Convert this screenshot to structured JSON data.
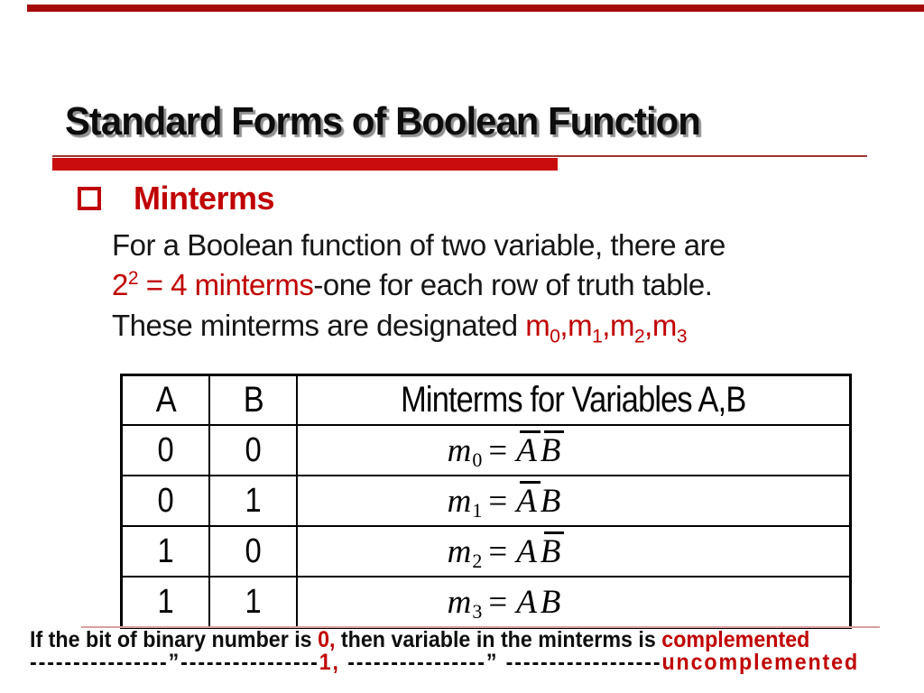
{
  "colors": {
    "accent_red": "#c00000",
    "thick_bar_red": "#c90d0d",
    "thin_line_red": "#9e3434",
    "top_bar_red": "#a50a0a",
    "pink_rule": "#dba0a0",
    "text_black": "#111111"
  },
  "title": {
    "text": "Standard Forms of Boolean Function"
  },
  "heading": {
    "text": "Minterms"
  },
  "paragraph": {
    "line1": "For a Boolean function of two variable, there are",
    "line2_red": {
      "base": "2",
      "sup": "2",
      "rest": " = 4 minterms"
    },
    "line2_black": "-one for each row of truth table.",
    "line3_black": "These minterms are designated ",
    "line3_red": {
      "separator": ",",
      "items": [
        {
          "base": "m",
          "sub": "0"
        },
        {
          "base": "m",
          "sub": "1"
        },
        {
          "base": "m",
          "sub": "2"
        },
        {
          "base": "m",
          "sub": "3"
        }
      ]
    }
  },
  "table": {
    "headers": [
      "A",
      "B",
      "Minterms for Variables A,B"
    ],
    "rows": [
      {
        "a": "0",
        "b": "0",
        "m": "m",
        "sub": "0",
        "eq": "=",
        "varA": "A",
        "varB": "B",
        "a_complemented": true,
        "b_complemented": true,
        "formula_text": "m0 = ĀB̄"
      },
      {
        "a": "0",
        "b": "1",
        "m": "m",
        "sub": "1",
        "eq": "=",
        "varA": "A",
        "varB": "B",
        "a_complemented": true,
        "b_complemented": false,
        "formula_text": "m1 = ĀB"
      },
      {
        "a": "1",
        "b": "0",
        "m": "m",
        "sub": "2",
        "eq": "=",
        "varA": "A",
        "varB": "B",
        "a_complemented": false,
        "b_complemented": true,
        "formula_text": "m2 = AB̄"
      },
      {
        "a": "1",
        "b": "1",
        "m": "m",
        "sub": "3",
        "eq": "=",
        "varA": "A",
        "varB": "B",
        "a_complemented": false,
        "b_complemented": false,
        "formula_text": "m3 = AB"
      }
    ]
  },
  "footer": {
    "line1": [
      {
        "t": "If the bit of binary number is ",
        "c": "black"
      },
      {
        "t": "0,",
        "c": "red"
      },
      {
        "t": " then variable in the minterms is ",
        "c": "black"
      },
      {
        "t": "complemented",
        "c": "red"
      }
    ],
    "line2": [
      {
        "t": "----------------”----------------",
        "c": "black"
      },
      {
        "t": "1,",
        "c": "red"
      },
      {
        "t": " ----------------” ------------------",
        "c": "black"
      },
      {
        "t": "uncomplemented",
        "c": "red"
      }
    ]
  }
}
